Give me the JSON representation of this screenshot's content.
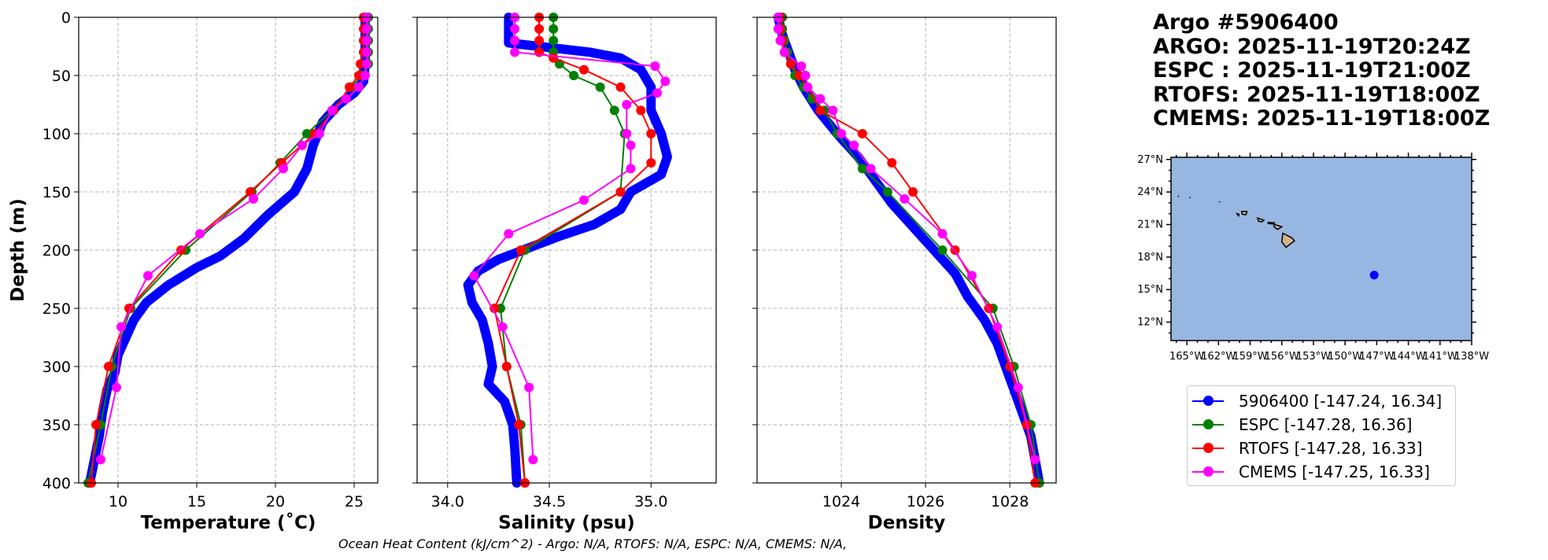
{
  "chart_data": [
    {
      "type": "line",
      "xlabel": "Temperature (˚C)",
      "ylabel": "Depth (m)",
      "xlim": [
        7.5,
        26.5
      ],
      "ylim": [
        400,
        0
      ],
      "xticks": [
        10,
        15,
        20,
        25
      ],
      "yticks": [
        0,
        50,
        100,
        150,
        200,
        250,
        300,
        350,
        400
      ],
      "grid": true,
      "series": [
        {
          "name": "5906400",
          "color": "#0000ff",
          "dense": true,
          "points": [
            [
              25.7,
              0
            ],
            [
              25.7,
              20
            ],
            [
              25.7,
              40
            ],
            [
              25.6,
              55
            ],
            [
              25.0,
              65
            ],
            [
              24.0,
              75
            ],
            [
              23.0,
              90
            ],
            [
              22.4,
              110
            ],
            [
              22.0,
              130
            ],
            [
              21.2,
              150
            ],
            [
              19.5,
              170
            ],
            [
              18.0,
              190
            ],
            [
              16.5,
              205
            ],
            [
              15.0,
              215
            ],
            [
              13.2,
              230
            ],
            [
              11.8,
              245
            ],
            [
              11.0,
              260
            ],
            [
              10.5,
              275
            ],
            [
              10.0,
              290
            ],
            [
              9.8,
              305
            ],
            [
              9.3,
              320
            ],
            [
              9.0,
              340
            ],
            [
              8.8,
              360
            ],
            [
              8.5,
              380
            ],
            [
              8.2,
              400
            ]
          ]
        },
        {
          "name": "ESPC",
          "color": "#008000",
          "points": [
            [
              25.9,
              0
            ],
            [
              25.9,
              10
            ],
            [
              25.9,
              20
            ],
            [
              25.9,
              30
            ],
            [
              25.9,
              40
            ],
            [
              25.5,
              50
            ],
            [
              24.8,
              60
            ],
            [
              23.6,
              80
            ],
            [
              22.0,
              100
            ],
            [
              20.3,
              125
            ],
            [
              18.5,
              150
            ],
            [
              14.3,
              200
            ],
            [
              10.8,
              250
            ],
            [
              9.6,
              300
            ],
            [
              8.9,
              350
            ],
            [
              8.1,
              400
            ]
          ]
        },
        {
          "name": "RTOFS",
          "color": "#ff0000",
          "points": [
            [
              25.6,
              0
            ],
            [
              25.6,
              10
            ],
            [
              25.6,
              20
            ],
            [
              25.6,
              30
            ],
            [
              25.4,
              40
            ],
            [
              25.3,
              50
            ],
            [
              24.7,
              60
            ],
            [
              23.7,
              80
            ],
            [
              22.5,
              100
            ],
            [
              20.4,
              125
            ],
            [
              18.4,
              150
            ],
            [
              14.0,
              200
            ],
            [
              10.7,
              250
            ],
            [
              9.4,
              300
            ],
            [
              8.6,
              350
            ],
            [
              8.3,
              400
            ]
          ]
        },
        {
          "name": "CMEMS",
          "color": "#ff00ff",
          "points": [
            [
              25.8,
              0
            ],
            [
              25.8,
              10
            ],
            [
              25.8,
              20
            ],
            [
              25.8,
              30
            ],
            [
              25.8,
              40
            ],
            [
              25.7,
              50
            ],
            [
              25.3,
              60
            ],
            [
              24.5,
              70
            ],
            [
              23.6,
              80
            ],
            [
              22.8,
              100
            ],
            [
              21.7,
              110
            ],
            [
              20.5,
              130
            ],
            [
              18.6,
              156
            ],
            [
              15.2,
              186
            ],
            [
              11.9,
              222
            ],
            [
              10.2,
              266
            ],
            [
              9.9,
              318
            ],
            [
              8.9,
              380
            ]
          ]
        }
      ]
    },
    {
      "type": "line",
      "xlabel": "Salinity (psu)",
      "xlim": [
        33.85,
        35.32
      ],
      "ylim": [
        400,
        0
      ],
      "xticks": [
        34.0,
        34.5,
        35.0
      ],
      "grid": true,
      "series": [
        {
          "name": "5906400",
          "color": "#0000ff",
          "dense": true,
          "points": [
            [
              34.3,
              0
            ],
            [
              34.3,
              15
            ],
            [
              34.3,
              22
            ],
            [
              34.45,
              25
            ],
            [
              34.7,
              30
            ],
            [
              34.85,
              35
            ],
            [
              34.95,
              45
            ],
            [
              35.0,
              60
            ],
            [
              35.0,
              80
            ],
            [
              35.05,
              100
            ],
            [
              35.08,
              120
            ],
            [
              35.05,
              135
            ],
            [
              34.9,
              150
            ],
            [
              34.85,
              165
            ],
            [
              34.72,
              178
            ],
            [
              34.55,
              188
            ],
            [
              34.4,
              198
            ],
            [
              34.25,
              208
            ],
            [
              34.15,
              218
            ],
            [
              34.1,
              230
            ],
            [
              34.12,
              245
            ],
            [
              34.17,
              260
            ],
            [
              34.2,
              280
            ],
            [
              34.22,
              300
            ],
            [
              34.2,
              315
            ],
            [
              34.28,
              330
            ],
            [
              34.32,
              350
            ],
            [
              34.33,
              370
            ],
            [
              34.34,
              400
            ]
          ]
        },
        {
          "name": "ESPC",
          "color": "#008000",
          "points": [
            [
              34.52,
              0
            ],
            [
              34.52,
              10
            ],
            [
              34.52,
              20
            ],
            [
              34.52,
              30
            ],
            [
              34.55,
              40
            ],
            [
              34.62,
              50
            ],
            [
              34.75,
              60
            ],
            [
              34.82,
              80
            ],
            [
              34.87,
              100
            ],
            [
              34.85,
              150
            ],
            [
              34.38,
              200
            ],
            [
              34.26,
              250
            ],
            [
              34.29,
              300
            ],
            [
              34.36,
              350
            ],
            [
              34.38,
              400
            ]
          ]
        },
        {
          "name": "RTOFS",
          "color": "#ff0000",
          "points": [
            [
              34.45,
              0
            ],
            [
              34.45,
              10
            ],
            [
              34.45,
              20
            ],
            [
              34.45,
              30
            ],
            [
              34.52,
              35
            ],
            [
              34.67,
              45
            ],
            [
              34.85,
              60
            ],
            [
              34.95,
              80
            ],
            [
              35.0,
              100
            ],
            [
              35.0,
              125
            ],
            [
              34.85,
              150
            ],
            [
              34.36,
              200
            ],
            [
              34.23,
              250
            ],
            [
              34.29,
              300
            ],
            [
              34.35,
              350
            ],
            [
              34.38,
              400
            ]
          ]
        },
        {
          "name": "CMEMS",
          "color": "#ff00ff",
          "points": [
            [
              34.33,
              0
            ],
            [
              34.33,
              10
            ],
            [
              34.33,
              20
            ],
            [
              34.33,
              30
            ],
            [
              35.02,
              42
            ],
            [
              35.07,
              55
            ],
            [
              35.03,
              65
            ],
            [
              34.88,
              75
            ],
            [
              34.88,
              100
            ],
            [
              34.9,
              110
            ],
            [
              34.9,
              130
            ],
            [
              34.67,
              157
            ],
            [
              34.3,
              186
            ],
            [
              34.13,
              222
            ],
            [
              34.27,
              266
            ],
            [
              34.4,
              318
            ],
            [
              34.42,
              380
            ]
          ]
        }
      ]
    },
    {
      "type": "line",
      "xlabel": "Density",
      "xlim": [
        1022.0,
        1029.1
      ],
      "ylim": [
        400,
        0
      ],
      "xticks": [
        1024,
        1026,
        1028
      ],
      "grid": true,
      "series": [
        {
          "name": "5906400",
          "color": "#0000ff",
          "dense": true,
          "points": [
            [
              1022.5,
              0
            ],
            [
              1022.6,
              15
            ],
            [
              1022.75,
              30
            ],
            [
              1022.9,
              45
            ],
            [
              1023.1,
              60
            ],
            [
              1023.45,
              80
            ],
            [
              1023.9,
              100
            ],
            [
              1024.4,
              120
            ],
            [
              1024.8,
              140
            ],
            [
              1025.2,
              160
            ],
            [
              1025.7,
              180
            ],
            [
              1026.2,
              200
            ],
            [
              1026.7,
              220
            ],
            [
              1027.0,
              240
            ],
            [
              1027.4,
              260
            ],
            [
              1027.7,
              280
            ],
            [
              1027.9,
              300
            ],
            [
              1028.1,
              320
            ],
            [
              1028.3,
              340
            ],
            [
              1028.5,
              360
            ],
            [
              1028.6,
              380
            ],
            [
              1028.7,
              400
            ]
          ]
        },
        {
          "name": "ESPC",
          "color": "#008000",
          "points": [
            [
              1022.6,
              0
            ],
            [
              1022.6,
              10
            ],
            [
              1022.65,
              20
            ],
            [
              1022.72,
              30
            ],
            [
              1022.8,
              40
            ],
            [
              1022.9,
              50
            ],
            [
              1023.1,
              60
            ],
            [
              1023.3,
              70
            ],
            [
              1023.6,
              80
            ],
            [
              1023.9,
              100
            ],
            [
              1024.5,
              130
            ],
            [
              1025.1,
              150
            ],
            [
              1026.4,
              200
            ],
            [
              1027.6,
              250
            ],
            [
              1028.1,
              300
            ],
            [
              1028.5,
              350
            ],
            [
              1028.7,
              400
            ]
          ]
        },
        {
          "name": "RTOFS",
          "color": "#ff0000",
          "points": [
            [
              1022.55,
              0
            ],
            [
              1022.55,
              10
            ],
            [
              1022.6,
              20
            ],
            [
              1022.65,
              30
            ],
            [
              1022.8,
              40
            ],
            [
              1023.0,
              50
            ],
            [
              1023.2,
              60
            ],
            [
              1023.5,
              80
            ],
            [
              1024.5,
              100
            ],
            [
              1025.2,
              125
            ],
            [
              1025.7,
              150
            ],
            [
              1026.7,
              200
            ],
            [
              1027.5,
              250
            ],
            [
              1028.0,
              300
            ],
            [
              1028.4,
              350
            ],
            [
              1028.6,
              400
            ]
          ]
        },
        {
          "name": "CMEMS",
          "color": "#ff00ff",
          "points": [
            [
              1022.5,
              0
            ],
            [
              1022.5,
              10
            ],
            [
              1022.55,
              20
            ],
            [
              1022.65,
              30
            ],
            [
              1023.05,
              42
            ],
            [
              1023.15,
              50
            ],
            [
              1023.2,
              60
            ],
            [
              1023.5,
              70
            ],
            [
              1023.8,
              80
            ],
            [
              1024.0,
              100
            ],
            [
              1024.3,
              110
            ],
            [
              1024.7,
              130
            ],
            [
              1025.5,
              156
            ],
            [
              1026.4,
              186
            ],
            [
              1027.1,
              222
            ],
            [
              1027.7,
              266
            ],
            [
              1028.2,
              318
            ],
            [
              1028.6,
              380
            ]
          ]
        }
      ]
    }
  ],
  "title": {
    "line1": "Argo #5906400",
    "line2": "ARGO: 2025-11-19T20:24Z",
    "line3": "ESPC : 2025-11-19T21:00Z",
    "line4": "RTOFS: 2025-11-19T18:00Z",
    "line5": "CMEMS: 2025-11-19T18:00Z"
  },
  "map": {
    "lat_labels": [
      "27°N",
      "24°N",
      "21°N",
      "18°N",
      "15°N",
      "12°N"
    ],
    "lon_labels": [
      "165°W",
      "162°W",
      "159°W",
      "156°W",
      "153°W",
      "150°W",
      "147°W",
      "144°W",
      "141°W",
      "138°W"
    ],
    "ocean_color": "#97b6e1",
    "land_color": "#d2b48c",
    "float_lon": -147.24,
    "float_lat": 16.34
  },
  "legend": [
    {
      "label": "5906400 [-147.24, 16.34]",
      "color": "#0000ff"
    },
    {
      "label": "ESPC [-147.28, 16.36]",
      "color": "#008000"
    },
    {
      "label": "RTOFS [-147.28, 16.33]",
      "color": "#ff0000"
    },
    {
      "label": "CMEMS [-147.25, 16.33]",
      "color": "#ff00ff"
    }
  ],
  "caption": "Ocean Heat Content (kJ/cm^2) - Argo: N/A,  RTOFS: N/A,  ESPC: N/A,  CMEMS: N/A,"
}
